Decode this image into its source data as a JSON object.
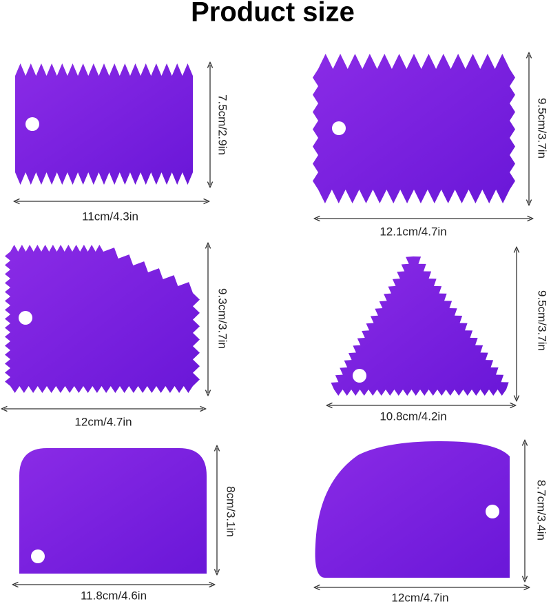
{
  "title": "Product size",
  "items": [
    {
      "width": "11cm/4.3in",
      "height": "7.5cm/2.9in"
    },
    {
      "width": "12.1cm/4.7in",
      "height": "9.5cm/3.7in"
    },
    {
      "width": "12cm/4.7in",
      "height": "9.3cm/3.7in"
    },
    {
      "width": "10.8cm/4.2in",
      "height": "9.5cm/3.7in"
    },
    {
      "width": "11.8cm/4.6in",
      "height": "8cm/3.1in"
    },
    {
      "width": "12cm/4.7in",
      "height": "8.7cm/3.4in"
    }
  ]
}
